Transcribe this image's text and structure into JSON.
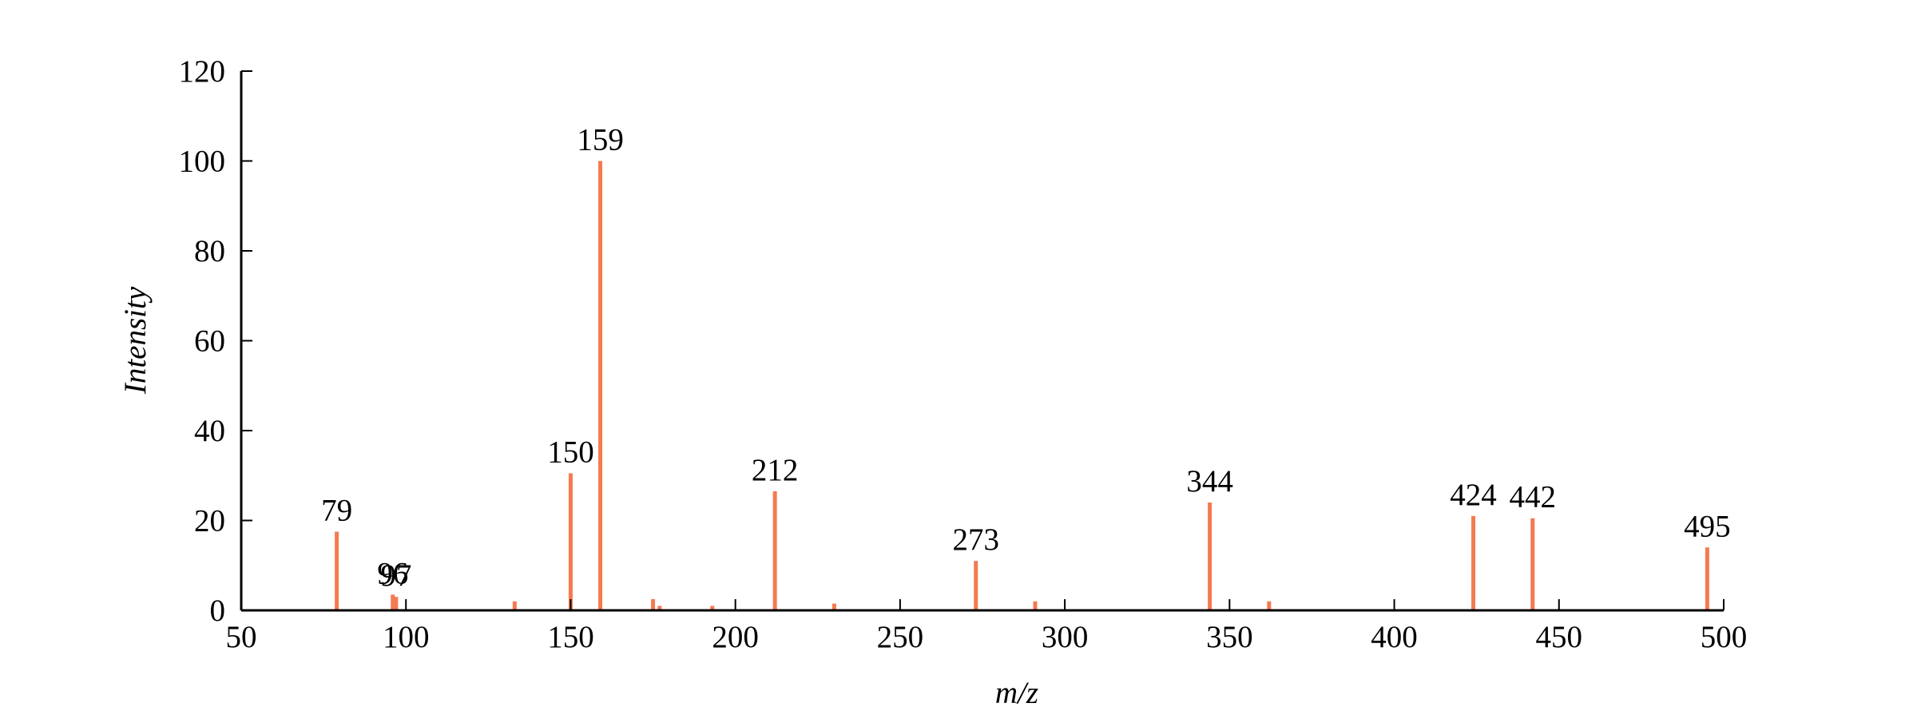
{
  "chart_data": {
    "type": "stem",
    "x_label": "m/z",
    "y_label": "Intensity",
    "xlim": [
      50,
      500
    ],
    "xticks": [
      50,
      100,
      150,
      200,
      250,
      300,
      350,
      400,
      450,
      500
    ],
    "ylim": [
      0,
      120
    ],
    "yticks": [
      0,
      20,
      40,
      60,
      80,
      100,
      120
    ],
    "series": [
      {
        "color": "#f47a50",
        "labels": true,
        "x": [
          79,
          96,
          97,
          150,
          159,
          212,
          273,
          344,
          424,
          442,
          495
        ],
        "values": [
          17.5,
          3.5,
          3,
          30.5,
          100,
          26.5,
          11,
          24,
          21,
          20.5,
          14
        ]
      },
      {
        "color": "#f47a50",
        "labels": false,
        "x": [
          133,
          175,
          177,
          193,
          230,
          291,
          362
        ],
        "values": [
          2,
          2.5,
          1,
          1,
          1.5,
          2,
          2
        ]
      }
    ]
  }
}
